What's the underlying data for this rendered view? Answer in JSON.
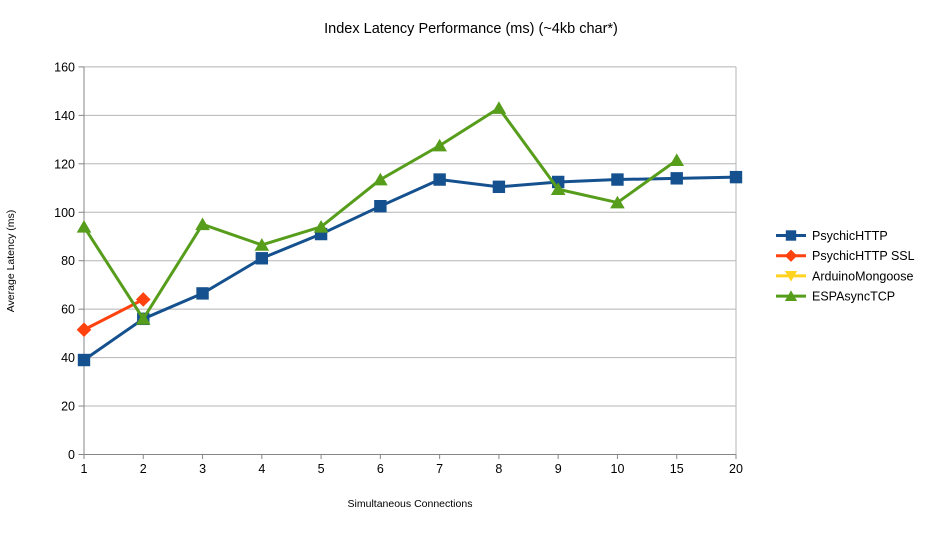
{
  "chart_data": {
    "type": "line",
    "title": "Index Latency Performance (ms) (~4kb char*)",
    "xlabel": "Simultaneous Connections",
    "ylabel": "Average Latency (ms)",
    "categories": [
      "1",
      "2",
      "3",
      "4",
      "5",
      "6",
      "7",
      "8",
      "9",
      "10",
      "15",
      "20"
    ],
    "ylim": [
      0,
      160
    ],
    "ytick_step": 20,
    "grid": "horizontal",
    "grid_color": "#b5b5b5",
    "axis_color": "#868686",
    "text_color": "#000000",
    "background_color": "#ffffff",
    "legend_position": "right",
    "series": [
      {
        "name": "PsychicHTTP",
        "color": "#15518e",
        "marker": "square",
        "values": [
          39,
          56,
          66.5,
          81,
          91,
          102.5,
          113.5,
          110.5,
          112.5,
          113.5,
          114,
          114.5
        ]
      },
      {
        "name": "PsychicHTTP SSL",
        "color": "#ff420e",
        "marker": "diamond",
        "values": [
          51.5,
          64,
          null,
          null,
          null,
          null,
          null,
          null,
          null,
          null,
          null,
          null
        ]
      },
      {
        "name": "ArduinoMongoose",
        "color": "#ffd320",
        "marker": "triangle-down",
        "values": [
          null,
          null,
          null,
          null,
          null,
          null,
          null,
          null,
          null,
          null,
          null,
          null
        ]
      },
      {
        "name": "ESPAsyncTCP",
        "color": "#579d1c",
        "marker": "triangle-up",
        "values": [
          94,
          56,
          95,
          86.5,
          94,
          113.5,
          127.5,
          143,
          109.5,
          104,
          121.5,
          null
        ]
      }
    ]
  }
}
